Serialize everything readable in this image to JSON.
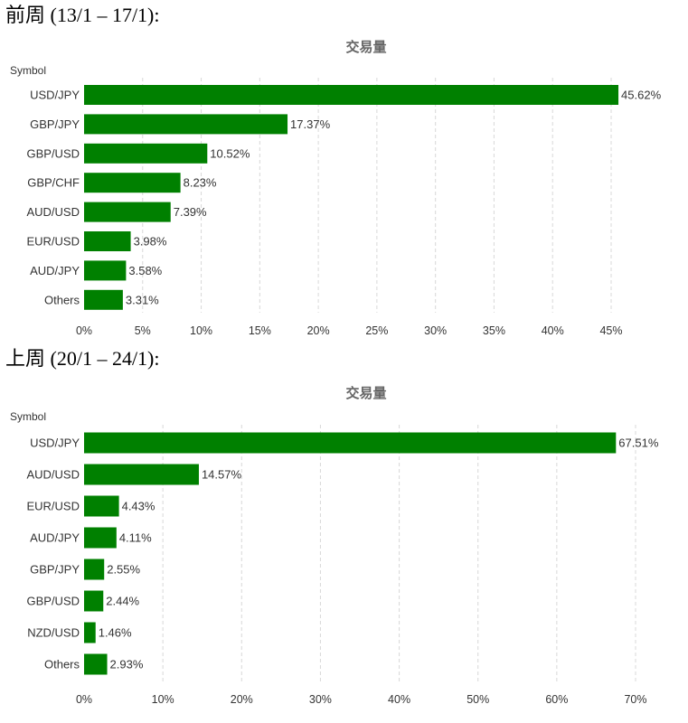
{
  "sections": [
    {
      "heading": "前周 (13/1 – 17/1):"
    },
    {
      "heading": "上周 (20/1 – 24/1):"
    }
  ],
  "colors": {
    "bar": "#008000",
    "grid": "#d8d8d8",
    "text": "#333333",
    "title": "#666666"
  },
  "chart_data": [
    {
      "type": "bar",
      "orientation": "horizontal",
      "title": "交易量",
      "category_axis_label": "Symbol",
      "categories": [
        "USD/JPY",
        "GBP/JPY",
        "GBP/USD",
        "GBP/CHF",
        "AUD/USD",
        "EUR/USD",
        "AUD/JPY",
        "Others"
      ],
      "values": [
        45.62,
        17.37,
        10.52,
        8.23,
        7.39,
        3.98,
        3.58,
        3.31
      ],
      "data_labels": [
        "45.62%",
        "17.37%",
        "10.52%",
        "8.23%",
        "7.39%",
        "3.98%",
        "3.58%",
        "3.31%"
      ],
      "xlim": [
        0,
        45
      ],
      "ticks": [
        0,
        5,
        10,
        15,
        20,
        25,
        30,
        35,
        40,
        45
      ],
      "tick_labels": [
        "0%",
        "5%",
        "10%",
        "15%",
        "20%",
        "25%",
        "30%",
        "35%",
        "40%",
        "45%"
      ],
      "grid": true
    },
    {
      "type": "bar",
      "orientation": "horizontal",
      "title": "交易量",
      "category_axis_label": "Symbol",
      "categories": [
        "USD/JPY",
        "AUD/USD",
        "EUR/USD",
        "AUD/JPY",
        "GBP/JPY",
        "GBP/USD",
        "NZD/USD",
        "Others"
      ],
      "values": [
        67.51,
        14.57,
        4.43,
        4.11,
        2.55,
        2.44,
        1.46,
        2.93
      ],
      "data_labels": [
        "67.51%",
        "14.57%",
        "4.43%",
        "4.11%",
        "2.55%",
        "2.44%",
        "1.46%",
        "2.93%"
      ],
      "xlim": [
        0,
        70
      ],
      "ticks": [
        0,
        10,
        20,
        30,
        40,
        50,
        60,
        70
      ],
      "tick_labels": [
        "0%",
        "10%",
        "20%",
        "30%",
        "40%",
        "50%",
        "60%",
        "70%"
      ],
      "grid": true
    }
  ]
}
